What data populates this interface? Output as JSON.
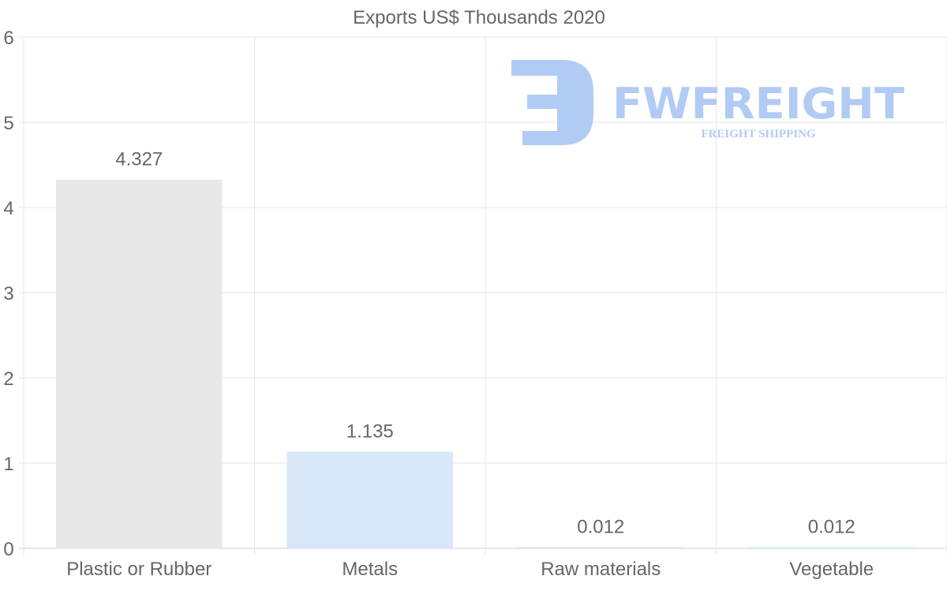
{
  "chart_data": {
    "type": "bar",
    "title": "Exports US$ Thousands 2020",
    "categories": [
      "Plastic or Rubber",
      "Metals",
      "Raw materials",
      "Vegetable"
    ],
    "values": [
      4.327,
      1.135,
      0.012,
      0.012
    ],
    "value_labels": [
      "4.327",
      "1.135",
      "0.012",
      "0.012"
    ],
    "colors": [
      "#e8e8e8",
      "#d8e8f9",
      "#cfe6f0",
      "#b9efef"
    ],
    "xlabel": "",
    "ylabel": "",
    "ylim": [
      0,
      6
    ],
    "yticks": [
      "0",
      "1",
      "2",
      "3",
      "4",
      "5",
      "6"
    ],
    "grid": true,
    "legend": "none"
  },
  "watermark": {
    "brand": "FWFREIGHT",
    "tagline": "FREIGHT SHIPPING",
    "color": "#a9c6f3"
  }
}
